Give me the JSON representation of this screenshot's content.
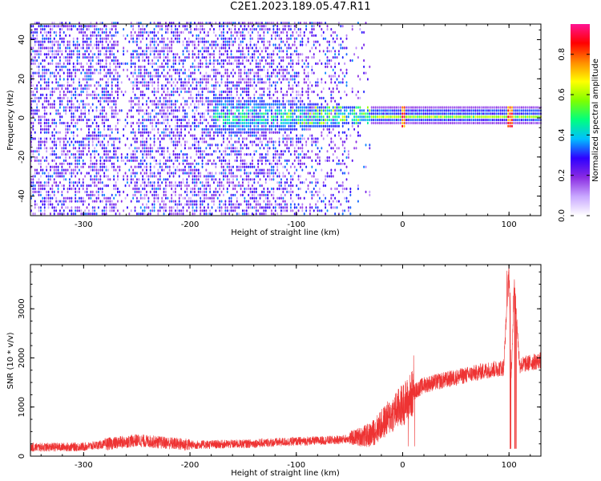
{
  "title": "C2E1.2023.189.05.47.R11",
  "chart_data": [
    {
      "type": "heatmap",
      "xlabel": "Height of straight line (km)",
      "ylabel": "Frequency (Hz)",
      "xlim": [
        -350,
        130
      ],
      "ylim": [
        -50,
        48
      ],
      "x_ticks": [
        -300,
        -200,
        -100,
        0,
        100
      ],
      "x_tick_labels": [
        "-300",
        "-200",
        "-100",
        "0",
        "100"
      ],
      "y_ticks": [
        -40,
        -20,
        0,
        20,
        40
      ],
      "y_tick_labels": [
        "-40",
        "-20",
        "0",
        "20",
        "40"
      ],
      "colorbar": {
        "label": "Normalized spectral amplitude",
        "range": [
          0,
          0.95
        ],
        "ticks": [
          0.0,
          0.2,
          0.4,
          0.6,
          0.8
        ],
        "tick_labels": [
          "0.0",
          "0.2",
          "0.4",
          "0.6",
          "0.8"
        ],
        "colors": [
          "#ffffff",
          "#c9a8ff",
          "#8a2be2",
          "#2f00ff",
          "#00bfff",
          "#00ff7f",
          "#7fff00",
          "#ffff00",
          "#ff8c00",
          "#ff0000",
          "#ff1493"
        ]
      },
      "features": {
        "noise_region_x": [
          -350,
          -50
        ],
        "carrier_frequency_hz": 0,
        "carrier_start_x": -30,
        "vertical_streak_x": -262,
        "spikes_x": [
          0,
          100
        ]
      },
      "grid": false,
      "legend": "none"
    },
    {
      "type": "line",
      "xlabel": "Height of straight line (km)",
      "ylabel": "SNR (10 * v/v)",
      "xlim": [
        -350,
        130
      ],
      "ylim": [
        0,
        3900
      ],
      "x_ticks": [
        -300,
        -200,
        -100,
        0,
        100
      ],
      "x_tick_labels": [
        "-300",
        "-200",
        "-100",
        "0",
        "100"
      ],
      "y_ticks": [
        0,
        1000,
        2000,
        3000
      ],
      "y_tick_labels": [
        "0",
        "1000",
        "2000",
        "3000"
      ],
      "color": "#ee3333",
      "series": [
        {
          "x": [
            -350,
            -300,
            -250,
            -200,
            -150,
            -100,
            -60,
            -30,
            -10,
            0,
            5,
            10,
            20,
            40,
            60,
            80,
            95,
            100,
            102,
            105,
            110,
            130
          ],
          "y": [
            180,
            190,
            320,
            230,
            250,
            300,
            330,
            430,
            850,
            1050,
            1150,
            1300,
            1450,
            1550,
            1650,
            1750,
            1800,
            3900,
            1600,
            3500,
            1850,
            1950
          ]
        }
      ],
      "grid": false,
      "legend": "none"
    }
  ]
}
